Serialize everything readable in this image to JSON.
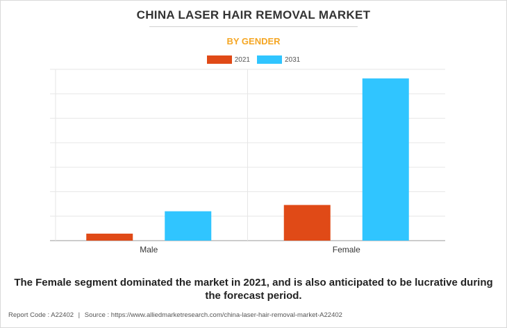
{
  "title": "CHINA LASER HAIR REMOVAL MARKET",
  "subtitle": "BY GENDER",
  "colors": {
    "subtitle": "#f5a623",
    "series_2021": "#e04a17",
    "series_2031": "#30c5ff",
    "grid": "#e6e6e6",
    "axis": "#999999"
  },
  "chart_data": {
    "type": "bar",
    "categories": [
      "Male",
      "Female"
    ],
    "series": [
      {
        "name": "2021",
        "values": [
          10,
          51
        ]
      },
      {
        "name": "2031",
        "values": [
          42,
          232
        ]
      }
    ],
    "ylim": [
      0,
      245
    ],
    "grid": true,
    "legend": "top-center",
    "y_tick_labels_shown": false
  },
  "caption": "The Female segment dominated the market in 2021, and is also anticipated to be lucrative during the forecast period.",
  "footer": {
    "report_code_label": "Report Code : A22402",
    "separator": "|",
    "source_label": "Source : https://www.alliedmarketresearch.com/china-laser-hair-removal-market-A22402"
  }
}
